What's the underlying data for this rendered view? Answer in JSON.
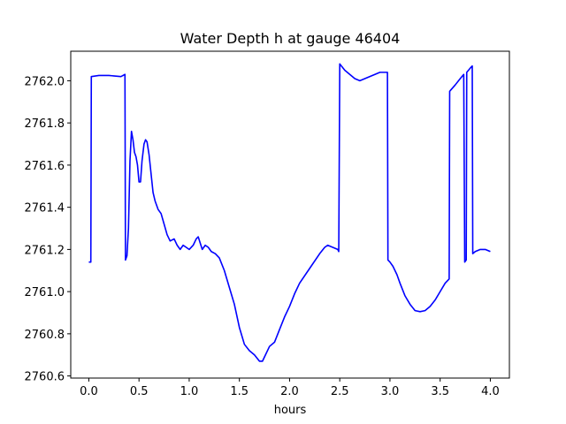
{
  "chart_data": {
    "type": "line",
    "title": "Water Depth h at gauge 46404",
    "xlabel": "hours",
    "ylabel": "",
    "xlim": [
      -0.18,
      4.19
    ],
    "ylim": [
      2760.59,
      2762.14
    ],
    "xticks": [
      0.0,
      0.5,
      1.0,
      1.5,
      2.0,
      2.5,
      3.0,
      3.5,
      4.0
    ],
    "xtick_labels": [
      "0.0",
      "0.5",
      "1.0",
      "1.5",
      "2.0",
      "2.5",
      "3.0",
      "3.5",
      "4.0"
    ],
    "yticks": [
      2760.6,
      2760.8,
      2761.0,
      2761.2,
      2761.4,
      2761.6,
      2761.8,
      2762.0
    ],
    "ytick_labels": [
      "2760.6",
      "2760.8",
      "2761.0",
      "2761.2",
      "2761.4",
      "2761.6",
      "2761.8",
      "2762.0"
    ],
    "grid": false,
    "series": [
      {
        "color": "#0000ff",
        "points": [
          [
            0.0,
            2761.14
          ],
          [
            0.02,
            2761.14
          ],
          [
            0.025,
            2762.02
          ],
          [
            0.1,
            2762.025
          ],
          [
            0.2,
            2762.025
          ],
          [
            0.32,
            2762.02
          ],
          [
            0.36,
            2762.03
          ],
          [
            0.365,
            2761.15
          ],
          [
            0.38,
            2761.17
          ],
          [
            0.395,
            2761.3
          ],
          [
            0.41,
            2761.62
          ],
          [
            0.425,
            2761.76
          ],
          [
            0.44,
            2761.72
          ],
          [
            0.455,
            2761.66
          ],
          [
            0.47,
            2761.64
          ],
          [
            0.485,
            2761.6
          ],
          [
            0.5,
            2761.52
          ],
          [
            0.515,
            2761.52
          ],
          [
            0.53,
            2761.62
          ],
          [
            0.55,
            2761.7
          ],
          [
            0.565,
            2761.72
          ],
          [
            0.58,
            2761.71
          ],
          [
            0.6,
            2761.65
          ],
          [
            0.62,
            2761.56
          ],
          [
            0.64,
            2761.47
          ],
          [
            0.66,
            2761.43
          ],
          [
            0.69,
            2761.39
          ],
          [
            0.72,
            2761.37
          ],
          [
            0.75,
            2761.32
          ],
          [
            0.78,
            2761.27
          ],
          [
            0.81,
            2761.24
          ],
          [
            0.85,
            2761.25
          ],
          [
            0.88,
            2761.22
          ],
          [
            0.91,
            2761.2
          ],
          [
            0.94,
            2761.22
          ],
          [
            0.97,
            2761.21
          ],
          [
            1.0,
            2761.2
          ],
          [
            1.04,
            2761.22
          ],
          [
            1.07,
            2761.25
          ],
          [
            1.09,
            2761.26
          ],
          [
            1.11,
            2761.23
          ],
          [
            1.13,
            2761.2
          ],
          [
            1.16,
            2761.22
          ],
          [
            1.19,
            2761.21
          ],
          [
            1.22,
            2761.19
          ],
          [
            1.26,
            2761.18
          ],
          [
            1.3,
            2761.16
          ],
          [
            1.35,
            2761.1
          ],
          [
            1.4,
            2761.02
          ],
          [
            1.45,
            2760.94
          ],
          [
            1.5,
            2760.83
          ],
          [
            1.55,
            2760.75
          ],
          [
            1.6,
            2760.72
          ],
          [
            1.65,
            2760.7
          ],
          [
            1.7,
            2760.67
          ],
          [
            1.73,
            2760.67
          ],
          [
            1.76,
            2760.7
          ],
          [
            1.8,
            2760.74
          ],
          [
            1.85,
            2760.76
          ],
          [
            1.9,
            2760.82
          ],
          [
            1.95,
            2760.88
          ],
          [
            2.0,
            2760.93
          ],
          [
            2.05,
            2760.99
          ],
          [
            2.1,
            2761.04
          ],
          [
            2.2,
            2761.11
          ],
          [
            2.3,
            2761.18
          ],
          [
            2.35,
            2761.21
          ],
          [
            2.38,
            2761.22
          ],
          [
            2.43,
            2761.21
          ],
          [
            2.48,
            2761.2
          ],
          [
            2.49,
            2761.19
          ],
          [
            2.5,
            2762.08
          ],
          [
            2.55,
            2762.05
          ],
          [
            2.6,
            2762.03
          ],
          [
            2.65,
            2762.01
          ],
          [
            2.7,
            2762.0
          ],
          [
            2.75,
            2762.01
          ],
          [
            2.8,
            2762.02
          ],
          [
            2.85,
            2762.03
          ],
          [
            2.9,
            2762.04
          ],
          [
            2.95,
            2762.04
          ],
          [
            2.975,
            2762.04
          ],
          [
            2.98,
            2761.15
          ],
          [
            3.0,
            2761.14
          ],
          [
            3.03,
            2761.12
          ],
          [
            3.07,
            2761.08
          ],
          [
            3.1,
            2761.04
          ],
          [
            3.15,
            2760.98
          ],
          [
            3.2,
            2760.94
          ],
          [
            3.25,
            2760.91
          ],
          [
            3.3,
            2760.905
          ],
          [
            3.35,
            2760.91
          ],
          [
            3.4,
            2760.93
          ],
          [
            3.45,
            2760.96
          ],
          [
            3.5,
            2761.0
          ],
          [
            3.55,
            2761.04
          ],
          [
            3.59,
            2761.06
          ],
          [
            3.595,
            2761.95
          ],
          [
            3.65,
            2761.98
          ],
          [
            3.7,
            2762.01
          ],
          [
            3.735,
            2762.03
          ],
          [
            3.745,
            2761.14
          ],
          [
            3.76,
            2761.15
          ],
          [
            3.765,
            2762.04
          ],
          [
            3.8,
            2762.06
          ],
          [
            3.82,
            2762.07
          ],
          [
            3.825,
            2761.18
          ],
          [
            3.85,
            2761.19
          ],
          [
            3.9,
            2761.2
          ],
          [
            3.95,
            2761.2
          ],
          [
            4.0,
            2761.19
          ]
        ]
      }
    ]
  }
}
